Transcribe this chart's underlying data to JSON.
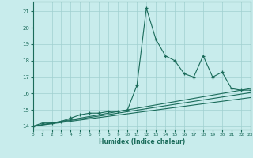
{
  "title": "",
  "xlabel": "Humidex (Indice chaleur)",
  "xlim": [
    0,
    23
  ],
  "ylim": [
    13.8,
    21.6
  ],
  "yticks": [
    14,
    15,
    16,
    17,
    18,
    19,
    20,
    21
  ],
  "xticks": [
    0,
    1,
    2,
    3,
    4,
    5,
    6,
    7,
    8,
    9,
    10,
    11,
    12,
    13,
    14,
    15,
    16,
    17,
    18,
    19,
    20,
    21,
    22,
    23
  ],
  "background_color": "#c8ecec",
  "grid_color": "#a0d0d0",
  "line_color": "#1a6b5a",
  "main_y": [
    14.0,
    14.2,
    14.2,
    14.3,
    14.5,
    14.7,
    14.8,
    14.8,
    14.9,
    14.9,
    15.0,
    16.5,
    21.2,
    19.3,
    18.3,
    18.0,
    17.2,
    17.0,
    18.3,
    17.0,
    17.3,
    16.3,
    16.2,
    16.2
  ],
  "smooth1": [
    14.0,
    16.3
  ],
  "smooth2": [
    14.0,
    16.05
  ],
  "smooth3": [
    14.0,
    15.75
  ]
}
